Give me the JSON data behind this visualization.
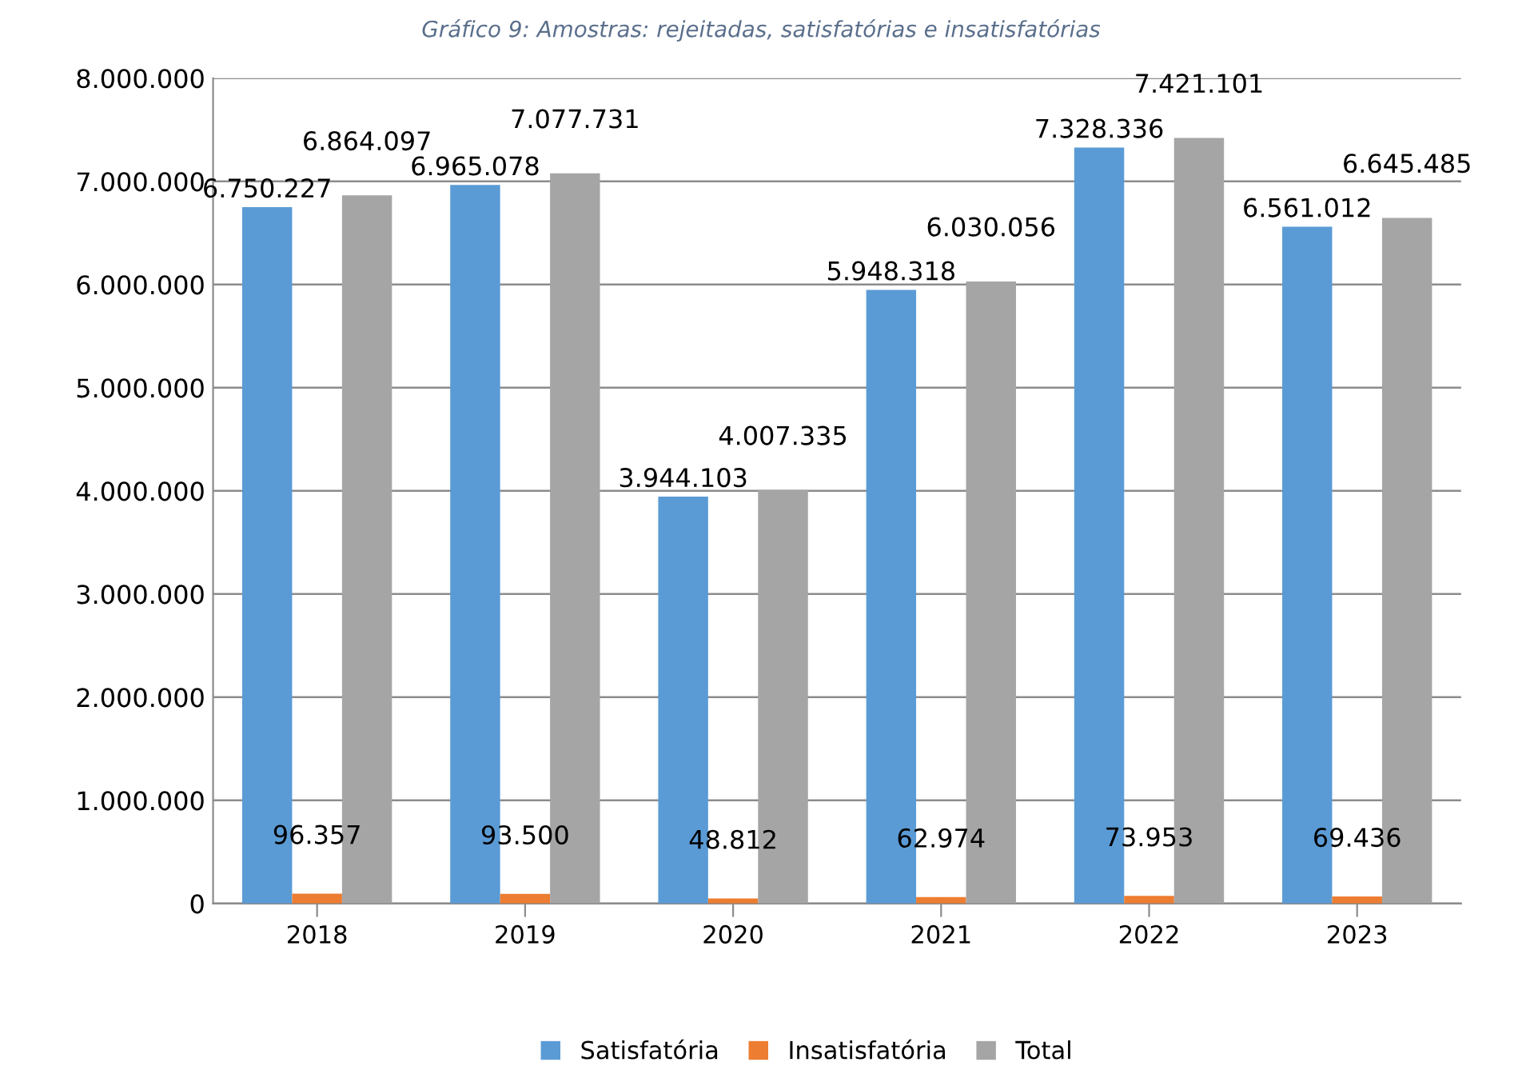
{
  "chart_data": {
    "type": "bar",
    "title": "Gráfico 9: Amostras: rejeitadas, satisfatórias e insatisfatórias",
    "categories": [
      "2018",
      "2019",
      "2020",
      "2021",
      "2022",
      "2023"
    ],
    "series": [
      {
        "name": "Satisfatória",
        "color": "#5b9bd5",
        "values": [
          6750227,
          6965078,
          3944103,
          5948318,
          7328336,
          6561012
        ],
        "value_labels": [
          "6.750.227",
          "6.965.078",
          "3.944.103",
          "5.948.318",
          "7.328.336",
          "6.561.012"
        ]
      },
      {
        "name": "Insatisfatória",
        "color": "#ed7d31",
        "values": [
          96357,
          93500,
          48812,
          62974,
          73953,
          69436
        ],
        "value_labels": [
          "96.357",
          "93.500",
          "48.812",
          "62.974",
          "73.953",
          "69.436"
        ]
      },
      {
        "name": "Total",
        "color": "#a5a5a5",
        "values": [
          6864097,
          7077731,
          4007335,
          6030056,
          7421101,
          6645485
        ],
        "value_labels": [
          "6.864.097",
          "7.077.731",
          "4.007.335",
          "6.030.056",
          "7.421.101",
          "6.645.485"
        ]
      }
    ],
    "ylim": [
      0,
      8000000
    ],
    "yticks": [
      {
        "value": 0,
        "label": "0"
      },
      {
        "value": 1000000,
        "label": "1.000.000"
      },
      {
        "value": 2000000,
        "label": "2.000.000"
      },
      {
        "value": 3000000,
        "label": "3.000.000"
      },
      {
        "value": 4000000,
        "label": "4.000.000"
      },
      {
        "value": 5000000,
        "label": "5.000.000"
      },
      {
        "value": 6000000,
        "label": "6.000.000"
      },
      {
        "value": 7000000,
        "label": "7.000.000"
      },
      {
        "value": 8000000,
        "label": "8.000.000"
      }
    ],
    "grid": "y",
    "legend": "bottom"
  }
}
